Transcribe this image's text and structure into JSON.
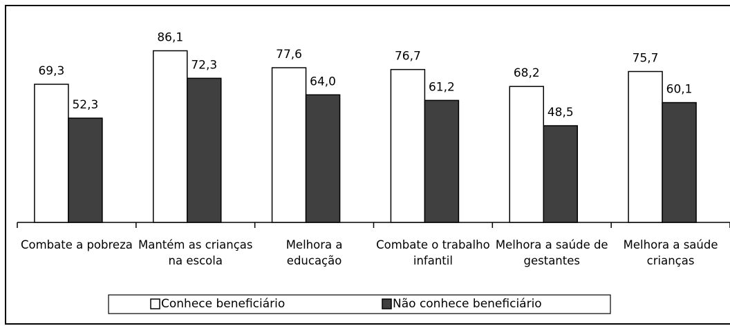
{
  "chart_data": {
    "type": "bar",
    "categories": [
      "Combate a pobreza",
      "Mantém as crianças na escola",
      "Melhora a educação",
      "Combate o trabalho infantil",
      "Melhora a saúde de gestantes",
      "Melhora a saúde crianças"
    ],
    "series": [
      {
        "name": "Conhece beneficiário",
        "color": "#ffffff",
        "values": [
          69.3,
          86.1,
          77.6,
          76.7,
          68.2,
          75.7
        ],
        "value_labels": [
          "69,3",
          "86,1",
          "77,6",
          "76,7",
          "68,2",
          "75,7"
        ]
      },
      {
        "name": "Não conhece beneficiário",
        "color": "#404040",
        "values": [
          52.3,
          72.3,
          64.0,
          61.2,
          48.5,
          60.1
        ],
        "value_labels": [
          "52,3",
          "72,3",
          "64,0",
          "61,2",
          "48,5",
          "60,1"
        ]
      }
    ],
    "ylim": [
      0,
      100
    ],
    "legend": "bottom"
  }
}
